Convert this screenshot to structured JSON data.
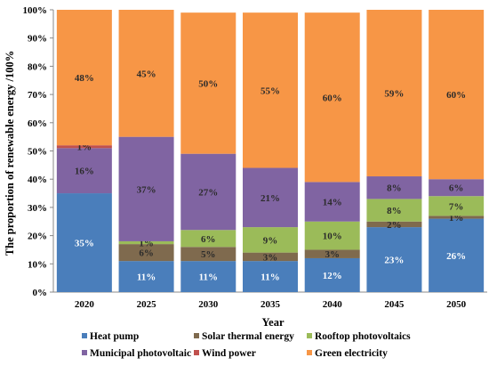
{
  "chart_data": {
    "type": "bar",
    "stacked": true,
    "title": "",
    "xlabel": "Year",
    "ylabel": "The proportion of renewable energy /100%",
    "ylim": [
      0,
      100
    ],
    "yticks": [
      "0%",
      "10%",
      "20%",
      "30%",
      "40%",
      "50%",
      "60%",
      "70%",
      "80%",
      "90%",
      "100%"
    ],
    "categories": [
      "2020",
      "2025",
      "2030",
      "2035",
      "2040",
      "2045",
      "2050"
    ],
    "grid": false,
    "legend_position": "bottom",
    "series": [
      {
        "name": "Heat pump",
        "color": "#4A7EBB",
        "values": [
          35,
          11,
          11,
          11,
          12,
          23,
          26
        ],
        "labels": [
          "35%",
          "11%",
          "11%",
          "11%",
          "12%",
          "23%",
          "26%"
        ]
      },
      {
        "name": "Solar thermal energy",
        "color": "#7F6A4E",
        "values": [
          0,
          6,
          5,
          3,
          3,
          2,
          1
        ],
        "labels": [
          "",
          "6%",
          "5%",
          "3%",
          "3%",
          "2%",
          "1%"
        ]
      },
      {
        "name": "Rooftop photovoltaics",
        "color": "#9BBB59",
        "values": [
          0,
          1,
          6,
          9,
          10,
          8,
          7
        ],
        "labels": [
          "",
          "1%",
          "6%",
          "9%",
          "10%",
          "8%",
          "7%"
        ]
      },
      {
        "name": "Municipal photovoltaic",
        "color": "#8064A2",
        "values": [
          16,
          37,
          27,
          21,
          14,
          8,
          6
        ],
        "labels": [
          "16%",
          "37%",
          "27%",
          "21%",
          "14%",
          "8%",
          "6%"
        ]
      },
      {
        "name": "Wind power",
        "color": "#C0504D",
        "values": [
          1,
          0,
          0,
          0,
          0,
          0,
          0
        ],
        "labels": [
          "1%",
          "",
          "",
          "",
          "",
          "",
          ""
        ]
      },
      {
        "name": "Green electricity",
        "color": "#F79646",
        "values": [
          48,
          45,
          50,
          55,
          60,
          59,
          60
        ],
        "labels": [
          "48%",
          "45%",
          "50%",
          "55%",
          "60%",
          "59%",
          "60%"
        ]
      }
    ]
  }
}
